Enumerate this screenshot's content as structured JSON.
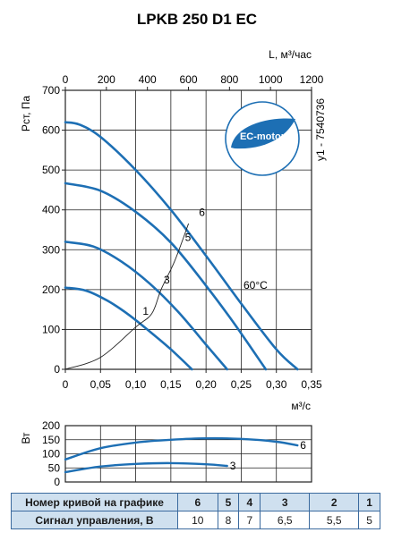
{
  "chart_data": [
    {
      "type": "line",
      "title": "LPKB 250 D1 EC",
      "xlabel": "м³/с",
      "x2label": "L, м³/час",
      "ylabel": "Pст, Па",
      "side_label": "у1 - 7540736",
      "logo_text": "EC-motor",
      "annotation": "60°C",
      "xlim": [
        0,
        0.35
      ],
      "x_ticks": [
        "0",
        "0,05",
        "0,10",
        "0,15",
        "0,20",
        "0,25",
        "0,30",
        "0,35"
      ],
      "x2lim": [
        0,
        1200
      ],
      "x2_ticks": [
        "0",
        "200",
        "400",
        "600",
        "800",
        "1000",
        "1200"
      ],
      "ylim": [
        0,
        700
      ],
      "y_ticks": [
        "0",
        "100",
        "200",
        "300",
        "400",
        "500",
        "600",
        "700"
      ],
      "grid": true,
      "series": [
        {
          "name": "1",
          "x": [
            0,
            0.03,
            0.06,
            0.09,
            0.12,
            0.15,
            0.18
          ],
          "y": [
            205,
            197,
            172,
            137,
            95,
            50,
            0
          ]
        },
        {
          "name": "3",
          "x": [
            0,
            0.04,
            0.08,
            0.12,
            0.16,
            0.2,
            0.23
          ],
          "y": [
            320,
            308,
            270,
            215,
            145,
            62,
            0
          ]
        },
        {
          "name": "5",
          "x": [
            0,
            0.05,
            0.1,
            0.15,
            0.2,
            0.24,
            0.285
          ],
          "y": [
            467,
            448,
            395,
            318,
            210,
            115,
            0
          ]
        },
        {
          "name": "6",
          "x": [
            0,
            0.02,
            0.05,
            0.1,
            0.15,
            0.2,
            0.25,
            0.3,
            0.33
          ],
          "y": [
            620,
            614,
            583,
            500,
            400,
            285,
            165,
            50,
            0
          ]
        },
        {
          "name": "system",
          "x": [
            0,
            0.05,
            0.1,
            0.123,
            0.136,
            0.155,
            0.175
          ],
          "y": [
            0,
            30,
            106,
            140,
            200,
            270,
            365
          ]
        }
      ],
      "labels": [
        {
          "text": "1",
          "x": 0.11,
          "y": 137
        },
        {
          "text": "3",
          "x": 0.14,
          "y": 215
        },
        {
          "text": "5",
          "x": 0.17,
          "y": 322
        },
        {
          "text": "6",
          "x": 0.19,
          "y": 385
        }
      ]
    },
    {
      "type": "line",
      "ylabel": "Вт",
      "xlim": [
        0,
        0.35
      ],
      "ylim": [
        0,
        200
      ],
      "y_ticks": [
        "0",
        "50",
        "100",
        "150",
        "200"
      ],
      "grid": true,
      "series": [
        {
          "name": "6",
          "x": [
            0,
            0.05,
            0.1,
            0.15,
            0.2,
            0.25,
            0.3,
            0.33
          ],
          "y": [
            80,
            120,
            140,
            150,
            155,
            153,
            143,
            130
          ]
        },
        {
          "name": "3",
          "x": [
            0,
            0.05,
            0.1,
            0.15,
            0.2,
            0.23
          ],
          "y": [
            35,
            55,
            64,
            67,
            63,
            57
          ]
        }
      ]
    }
  ],
  "table": {
    "row1_header": "Номер кривой на графике",
    "row1": [
      "6",
      "5",
      "4",
      "3",
      "2",
      "1"
    ],
    "row2_header": "Сигнал управления, В",
    "row2": [
      "10",
      "8",
      "7",
      "6,5",
      "5,5",
      "5"
    ]
  },
  "colors": {
    "curve": "#1d6fb4",
    "grid": "#222222",
    "logo": "#1d6fb4",
    "table_header_bg": "#cfe0ef"
  }
}
